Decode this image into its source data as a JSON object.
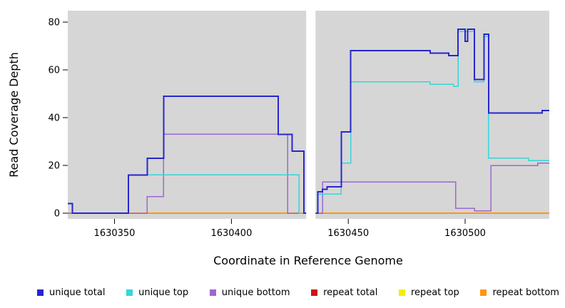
{
  "chart_data": {
    "type": "line",
    "line_style": "step-after",
    "title": "",
    "xlabel": "Coordinate in Reference Genome",
    "ylabel": "Read Coverage Depth",
    "xlim": [
      1630330,
      1630536
    ],
    "ylim": [
      0,
      80
    ],
    "x_ticks": [
      1630350,
      1630400,
      1630450,
      1630500
    ],
    "y_ticks": [
      0,
      20,
      40,
      60,
      80
    ],
    "plot_bg": "#d6d6d6",
    "gap_x": [
      1630432,
      1630436
    ],
    "legend_position": "bottom",
    "grid": false,
    "draw_order": [
      3,
      4,
      5,
      2,
      1,
      0
    ],
    "series": [
      {
        "name": "unique total",
        "color": "#2727cd",
        "lw": 2,
        "points": [
          [
            1630330,
            4
          ],
          [
            1630332,
            0
          ],
          [
            1630356,
            16
          ],
          [
            1630364,
            23
          ],
          [
            1630371,
            49
          ],
          [
            1630420,
            33
          ],
          [
            1630426,
            26
          ],
          [
            1630431,
            0
          ],
          [
            1630437,
            9
          ],
          [
            1630439,
            10
          ],
          [
            1630441,
            11
          ],
          [
            1630447,
            34
          ],
          [
            1630451,
            68
          ],
          [
            1630485,
            67
          ],
          [
            1630493,
            66
          ],
          [
            1630497,
            77
          ],
          [
            1630500,
            72
          ],
          [
            1630501,
            77
          ],
          [
            1630504,
            56
          ],
          [
            1630508,
            75
          ],
          [
            1630510,
            42
          ],
          [
            1630533,
            43
          ]
        ]
      },
      {
        "name": "unique top",
        "color": "#33d6da",
        "lw": 1.5,
        "points": [
          [
            1630330,
            4
          ],
          [
            1630332,
            0
          ],
          [
            1630356,
            16
          ],
          [
            1630429,
            0
          ],
          [
            1630437,
            8
          ],
          [
            1630447,
            21
          ],
          [
            1630451,
            55
          ],
          [
            1630485,
            54
          ],
          [
            1630495,
            53
          ],
          [
            1630497,
            76
          ],
          [
            1630504,
            55
          ],
          [
            1630508,
            74
          ],
          [
            1630510,
            23
          ],
          [
            1630527,
            22
          ]
        ]
      },
      {
        "name": "unique bottom",
        "color": "#9b68d0",
        "lw": 1.5,
        "points": [
          [
            1630330,
            0
          ],
          [
            1630364,
            7
          ],
          [
            1630371,
            33
          ],
          [
            1630424,
            0
          ],
          [
            1630439,
            13
          ],
          [
            1630496,
            2
          ],
          [
            1630504,
            1
          ],
          [
            1630511,
            20
          ],
          [
            1630531,
            21
          ]
        ]
      },
      {
        "name": "repeat total",
        "color": "#c81616",
        "lw": 1.5,
        "points": [
          [
            1630330,
            0
          ]
        ]
      },
      {
        "name": "repeat top",
        "color": "#efef10",
        "lw": 1.5,
        "points": [
          [
            1630330,
            0
          ]
        ]
      },
      {
        "name": "repeat bottom",
        "color": "#ff9514",
        "lw": 1.6,
        "points": [
          [
            1630330,
            0
          ]
        ]
      }
    ]
  }
}
